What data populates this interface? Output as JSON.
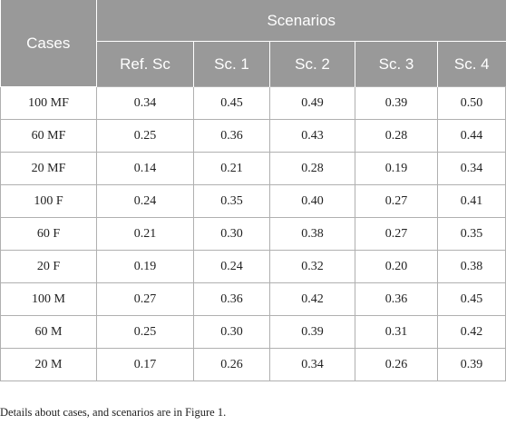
{
  "table": {
    "header": {
      "cases": "Cases",
      "scenarios": "Scenarios",
      "columns": [
        "Ref. Sc",
        "Sc. 1",
        "Sc. 2",
        "Sc. 3",
        "Sc. 4"
      ]
    },
    "rows": [
      {
        "case": "100 MF",
        "values": [
          "0.34",
          "0.45",
          "0.49",
          "0.39",
          "0.50"
        ]
      },
      {
        "case": "60 MF",
        "values": [
          "0.25",
          "0.36",
          "0.43",
          "0.28",
          "0.44"
        ]
      },
      {
        "case": "20 MF",
        "values": [
          "0.14",
          "0.21",
          "0.28",
          "0.19",
          "0.34"
        ]
      },
      {
        "case": "100 F",
        "values": [
          "0.24",
          "0.35",
          "0.40",
          "0.27",
          "0.41"
        ]
      },
      {
        "case": "60 F",
        "values": [
          "0.21",
          "0.30",
          "0.38",
          "0.27",
          "0.35"
        ]
      },
      {
        "case": "20 F",
        "values": [
          "0.19",
          "0.24",
          "0.32",
          "0.20",
          "0.38"
        ]
      },
      {
        "case": "100 M",
        "values": [
          "0.27",
          "0.36",
          "0.42",
          "0.36",
          "0.45"
        ]
      },
      {
        "case": "60 M",
        "values": [
          "0.25",
          "0.30",
          "0.39",
          "0.31",
          "0.42"
        ]
      },
      {
        "case": "20 M",
        "values": [
          "0.17",
          "0.26",
          "0.34",
          "0.26",
          "0.39"
        ]
      }
    ]
  },
  "footnote": "Details about cases, and scenarios are in Figure 1.",
  "colors": {
    "header_bg": "#999999",
    "header_text": "#ffffff",
    "grid": "#b0b0b0"
  }
}
